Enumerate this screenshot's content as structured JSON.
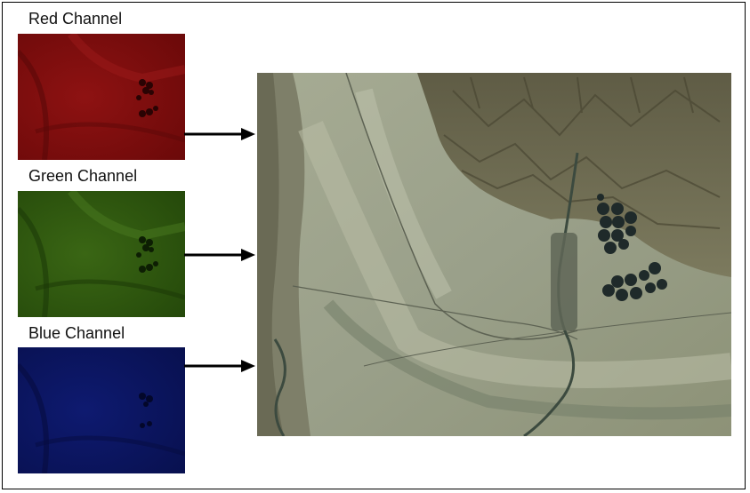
{
  "channels": [
    {
      "label": "Red Channel",
      "color": "#8b1010"
    },
    {
      "label": "Green Channel",
      "color": "#2f5a10"
    },
    {
      "label": "Blue Channel",
      "color": "#0b1560"
    }
  ],
  "composite": {
    "kind": "satellite-true-color-image",
    "palette": [
      "#8a8f72",
      "#a9ae95",
      "#6d6a52",
      "#3d4a3a"
    ]
  }
}
